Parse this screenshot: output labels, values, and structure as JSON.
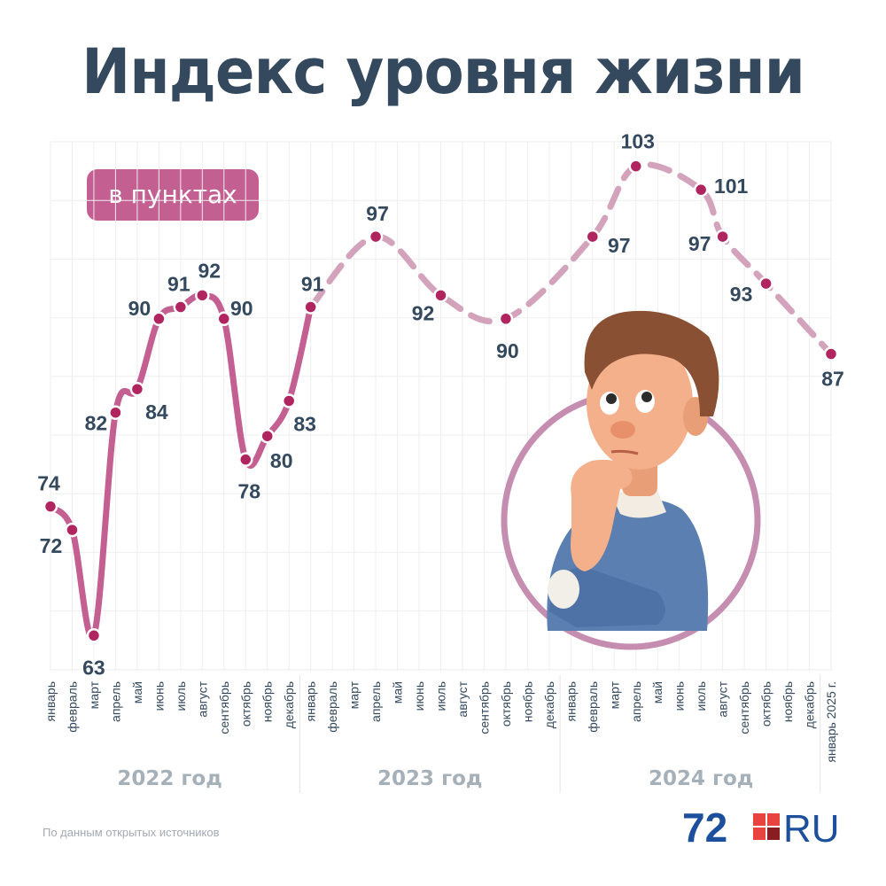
{
  "title": "Индекс уровня жизни",
  "unit_badge": "в пунктах",
  "source": "По данным открытых источников",
  "logo": {
    "number": "72",
    "suffix": "RU"
  },
  "colors": {
    "accent": "#c45f92",
    "accent_light": "#d3a3bc",
    "title": "#34495e",
    "label": "#34495e",
    "year": "#a6b0b9",
    "grid": "#eeeeee"
  },
  "illustration": "thinking-man-illustration",
  "chart_data": {
    "type": "line",
    "title": "Индекс уровня жизни",
    "unit": "в пунктах",
    "ylim": [
      60,
      105
    ],
    "grid": true,
    "categories": [
      "январь",
      "февраль",
      "март",
      "апрель",
      "май",
      "июнь",
      "июль",
      "август",
      "сентябрь",
      "октябрь",
      "ноябрь",
      "декабрь",
      "январь",
      "февраль",
      "март",
      "апрель",
      "май",
      "июнь",
      "июль",
      "август",
      "сентябрь",
      "октябрь",
      "ноябрь",
      "декабрь",
      "январь",
      "февраль",
      "март",
      "апрель",
      "май",
      "июнь",
      "июль",
      "август",
      "сентябрь",
      "октябрь",
      "ноябрь",
      "декабрь",
      "январь 2025 г."
    ],
    "year_groups": [
      {
        "label": "2022 год",
        "start": 0,
        "end": 11
      },
      {
        "label": "2023 год",
        "start": 12,
        "end": 23
      },
      {
        "label": "2024 год",
        "start": 24,
        "end": 36
      }
    ],
    "series": [
      {
        "points": [
          {
            "x": "январь 2022",
            "y": 74
          },
          {
            "x": "февраль 2022",
            "y": 72
          },
          {
            "x": "март 2022",
            "y": 63
          },
          {
            "x": "апрель 2022",
            "y": 82
          },
          {
            "x": "май 2022",
            "y": 84
          },
          {
            "x": "июнь 2022",
            "y": 90
          },
          {
            "x": "июль 2022",
            "y": 91
          },
          {
            "x": "август 2022",
            "y": 92
          },
          {
            "x": "сентябрь 2022",
            "y": 90
          },
          {
            "x": "октябрь 2022",
            "y": 78
          },
          {
            "x": "ноябрь 2022",
            "y": 80
          },
          {
            "x": "декабрь 2022",
            "y": 83
          },
          {
            "x": "январь 2023",
            "y": 91
          },
          {
            "x": "апрель 2023",
            "y": 97
          },
          {
            "x": "июль 2023",
            "y": 92
          },
          {
            "x": "октябрь 2023",
            "y": 90
          },
          {
            "x": "февраль 2024",
            "y": 97
          },
          {
            "x": "апрель 2024",
            "y": 103
          },
          {
            "x": "июль 2024",
            "y": 101
          },
          {
            "x": "август 2024",
            "y": 97
          },
          {
            "x": "октябрь 2024",
            "y": 93
          },
          {
            "x": "январь 2025 г.",
            "y": 87
          }
        ]
      }
    ]
  }
}
